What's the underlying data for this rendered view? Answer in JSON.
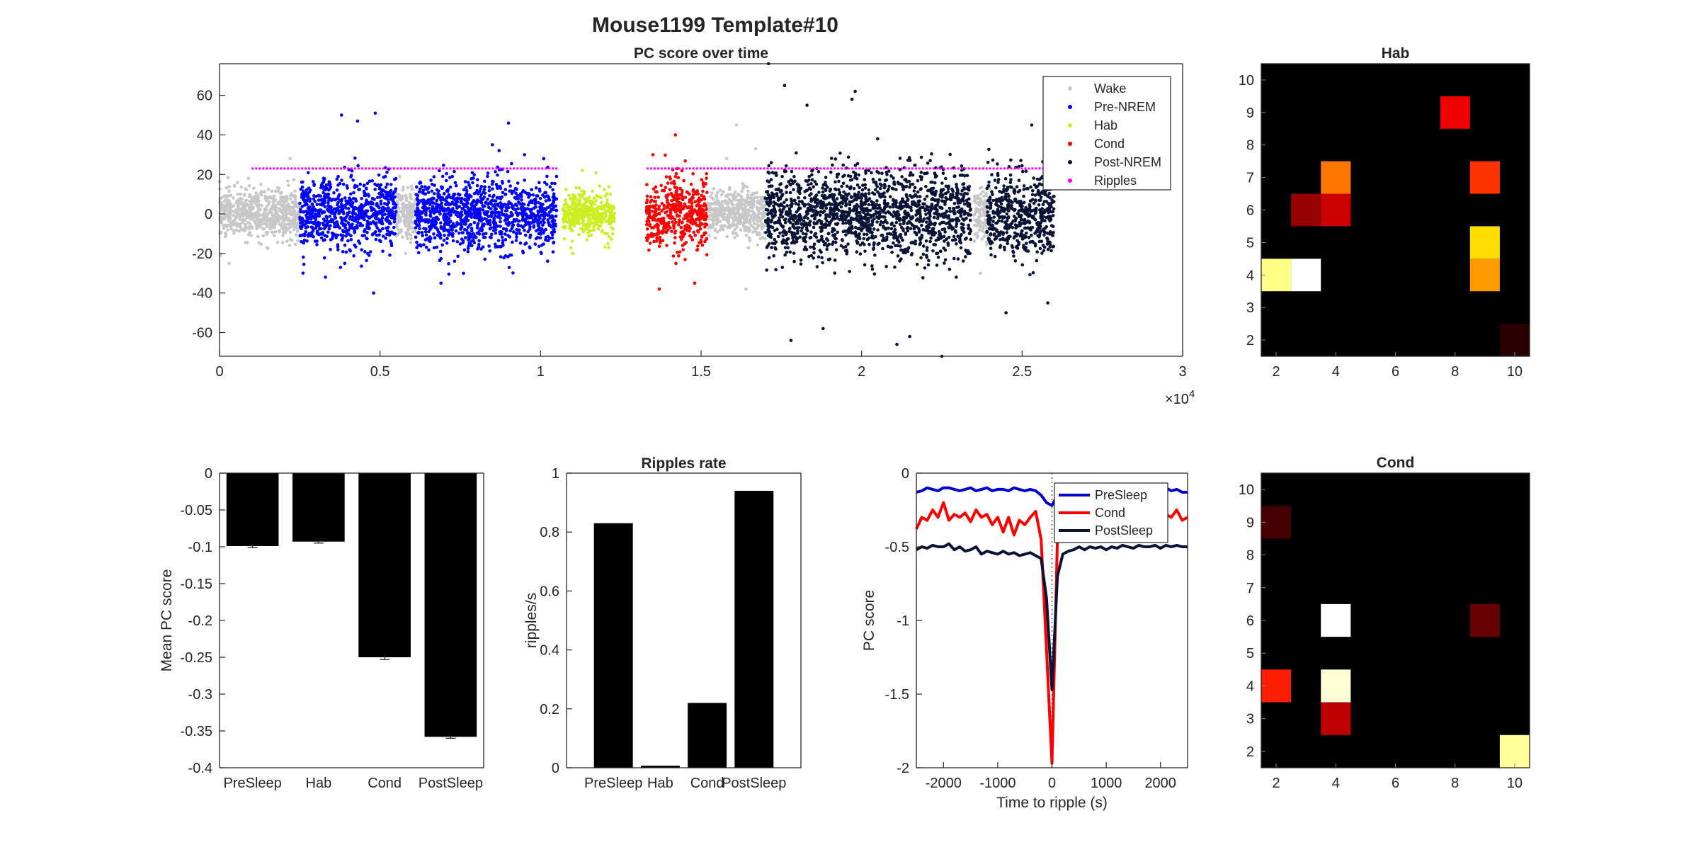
{
  "figure": {
    "suptitle": "Mouse1199 Template#10"
  },
  "chart_data": [
    {
      "id": "timeline",
      "type": "scatter",
      "title": "PC score over time",
      "xlabel": "",
      "ylabel": "",
      "xlim": [
        0,
        30000
      ],
      "ylim": [
        -72,
        76
      ],
      "x_ticks": [
        0,
        5000,
        10000,
        15000,
        20000,
        25000,
        30000
      ],
      "x_tick_labels": [
        "0",
        "0.5",
        "1",
        "1.5",
        "2",
        "2.5",
        "3"
      ],
      "x_exponent_label": "×10",
      "x_exponent_power": "4",
      "y_ticks": [
        -60,
        -40,
        -20,
        0,
        20,
        40,
        60
      ],
      "legend_position": "top-right",
      "series": [
        {
          "name": "Wake",
          "color": "#c8c8c8",
          "segments": [
            [
              0,
              2500
            ],
            [
              5500,
              6100
            ],
            [
              15200,
              17000
            ],
            [
              23500,
              24000
            ]
          ],
          "spread_sd": 6,
          "extremes": [
            [
              300,
              -25
            ],
            [
              900,
              18
            ],
            [
              2200,
              28
            ],
            [
              5800,
              -20
            ],
            [
              15800,
              28
            ],
            [
              16100,
              45
            ],
            [
              16400,
              -38
            ],
            [
              16700,
              33
            ],
            [
              23700,
              -30
            ],
            [
              15600,
              12
            ]
          ]
        },
        {
          "name": "Pre-NREM",
          "color": "#0000ff",
          "segments": [
            [
              2500,
              5500
            ],
            [
              6100,
              10500
            ]
          ],
          "spread_sd": 9,
          "extremes": [
            [
              3800,
              50
            ],
            [
              4300,
              47
            ],
            [
              4850,
              51
            ],
            [
              9000,
              46
            ],
            [
              4800,
              -40
            ],
            [
              6900,
              -35
            ],
            [
              7600,
              -30
            ],
            [
              3300,
              -32
            ],
            [
              8500,
              35
            ],
            [
              9500,
              30
            ],
            [
              10100,
              28
            ],
            [
              3900,
              -25
            ]
          ]
        },
        {
          "name": "Hab",
          "color": "#ccee22",
          "segments": [
            [
              10700,
              12300
            ]
          ],
          "spread_sd": 5.5,
          "extremes": [
            [
              11300,
              22
            ],
            [
              12100,
              -15
            ],
            [
              11000,
              -20
            ]
          ]
        },
        {
          "name": "Cond",
          "color": "#ff0000",
          "segments": [
            [
              13300,
              15200
            ]
          ],
          "spread_sd": 9,
          "extremes": [
            [
              14200,
              40
            ],
            [
              13700,
              -38
            ],
            [
              14800,
              -35
            ],
            [
              13500,
              30
            ]
          ]
        },
        {
          "name": "Post-NREM",
          "color": "#0a1235",
          "segments": [
            [
              17000,
              23400
            ],
            [
              23900,
              26000
            ]
          ],
          "spread_sd": 11,
          "extremes": [
            [
              17100,
              76
            ],
            [
              17600,
              65
            ],
            [
              19800,
              62
            ],
            [
              17800,
              -64
            ],
            [
              21100,
              -66
            ],
            [
              22500,
              -72
            ],
            [
              18800,
              -58
            ],
            [
              19700,
              58
            ],
            [
              21500,
              -62
            ],
            [
              24500,
              -50
            ],
            [
              25300,
              45
            ],
            [
              18300,
              55
            ],
            [
              20500,
              38
            ],
            [
              25800,
              -45
            ]
          ]
        },
        {
          "name": "Ripples",
          "color": "#ff00ff",
          "constant_y": 23,
          "segments": [
            [
              1000,
              10500
            ],
            [
              13300,
              26000
            ]
          ]
        }
      ]
    },
    {
      "id": "mean_pc",
      "type": "bar",
      "title": "",
      "xlabel": "",
      "ylabel": "Mean PC score",
      "categories": [
        "PreSleep",
        "Hab",
        "Cond",
        "PostSleep"
      ],
      "values": [
        -0.099,
        -0.093,
        -0.25,
        -0.358
      ],
      "errors": [
        0.002,
        0.002,
        0.003,
        0.002
      ],
      "ylim": [
        -0.4,
        0
      ],
      "y_ticks": [
        0,
        -0.05,
        -0.1,
        -0.15,
        -0.2,
        -0.25,
        -0.3,
        -0.35,
        -0.4
      ],
      "y_tick_labels": [
        "0",
        "-0.05",
        "-0.1",
        "-0.15",
        "-0.2",
        "-0.25",
        "-0.3",
        "-0.35",
        "-0.4"
      ]
    },
    {
      "id": "ripple_rate",
      "type": "bar",
      "title": "Ripples rate",
      "xlabel": "",
      "ylabel": "ripples/s",
      "categories": [
        "PreSleep",
        "Hab",
        "Cond",
        "PostSleep"
      ],
      "values": [
        0.83,
        0.007,
        0.22,
        0.94
      ],
      "ylim": [
        0,
        1
      ],
      "y_ticks": [
        0,
        0.2,
        0.4,
        0.6,
        0.8,
        1
      ],
      "y_tick_labels": [
        "0",
        "0.2",
        "0.4",
        "0.6",
        "0.8",
        "1"
      ]
    },
    {
      "id": "ripple_triggered",
      "type": "line",
      "title": "",
      "xlabel": "Time to ripple (s)",
      "ylabel": "PC score",
      "xlim": [
        -2500,
        2500
      ],
      "ylim": [
        -2,
        0
      ],
      "x_ticks": [
        -2000,
        -1000,
        0,
        1000,
        2000
      ],
      "x_tick_labels": [
        "-2000",
        "-1000",
        "0",
        "1000",
        "2000"
      ],
      "y_ticks": [
        0,
        -0.5,
        -1,
        -1.5,
        -2
      ],
      "y_tick_labels": [
        "0",
        "-0.5",
        "-1",
        "-1.5",
        "-2"
      ],
      "legend_position": "top-right",
      "x": [
        -2500,
        -2400,
        -2300,
        -2200,
        -2100,
        -2000,
        -1900,
        -1800,
        -1700,
        -1600,
        -1500,
        -1400,
        -1300,
        -1200,
        -1100,
        -1000,
        -900,
        -800,
        -700,
        -600,
        -500,
        -400,
        -300,
        -200,
        -100,
        0,
        100,
        200,
        300,
        400,
        500,
        600,
        700,
        800,
        900,
        1000,
        1100,
        1200,
        1300,
        1400,
        1500,
        1600,
        1700,
        1800,
        1900,
        2000,
        2100,
        2200,
        2300,
        2400,
        2500
      ],
      "series": [
        {
          "name": "PreSleep",
          "color": "#0000cc",
          "values": [
            -0.13,
            -0.12,
            -0.1,
            -0.11,
            -0.12,
            -0.1,
            -0.1,
            -0.11,
            -0.12,
            -0.11,
            -0.1,
            -0.12,
            -0.11,
            -0.1,
            -0.12,
            -0.11,
            -0.11,
            -0.12,
            -0.1,
            -0.11,
            -0.12,
            -0.11,
            -0.12,
            -0.15,
            -0.2,
            -0.22,
            -0.15,
            -0.12,
            -0.11,
            -0.12,
            -0.11,
            -0.1,
            -0.12,
            -0.11,
            -0.12,
            -0.11,
            -0.1,
            -0.11,
            -0.12,
            -0.1,
            -0.11,
            -0.12,
            -0.11,
            -0.1,
            -0.12,
            -0.11,
            -0.1,
            -0.12,
            -0.11,
            -0.13,
            -0.13
          ]
        },
        {
          "name": "Cond",
          "color": "#ff0000",
          "values": [
            -0.38,
            -0.3,
            -0.32,
            -0.25,
            -0.3,
            -0.2,
            -0.32,
            -0.28,
            -0.3,
            -0.27,
            -0.33,
            -0.25,
            -0.3,
            -0.28,
            -0.35,
            -0.3,
            -0.4,
            -0.3,
            -0.42,
            -0.32,
            -0.35,
            -0.3,
            -0.26,
            -0.45,
            -1.2,
            -1.97,
            -0.45,
            -0.3,
            -0.28,
            -0.3,
            -0.27,
            -0.25,
            -0.3,
            -0.27,
            -0.31,
            -0.25,
            -0.3,
            -0.28,
            -0.3,
            -0.27,
            -0.32,
            -0.25,
            -0.3,
            -0.27,
            -0.32,
            -0.3,
            -0.28,
            -0.3,
            -0.25,
            -0.32,
            -0.3
          ]
        },
        {
          "name": "PostSleep",
          "color": "#0a1235",
          "values": [
            -0.52,
            -0.5,
            -0.51,
            -0.49,
            -0.5,
            -0.5,
            -0.48,
            -0.52,
            -0.5,
            -0.53,
            -0.52,
            -0.5,
            -0.55,
            -0.53,
            -0.54,
            -0.55,
            -0.53,
            -0.55,
            -0.54,
            -0.56,
            -0.55,
            -0.54,
            -0.56,
            -0.58,
            -0.85,
            -1.47,
            -0.7,
            -0.55,
            -0.53,
            -0.52,
            -0.5,
            -0.52,
            -0.5,
            -0.51,
            -0.5,
            -0.52,
            -0.5,
            -0.51,
            -0.49,
            -0.5,
            -0.51,
            -0.49,
            -0.5,
            -0.5,
            -0.49,
            -0.51,
            -0.49,
            -0.5,
            -0.49,
            -0.5,
            -0.5
          ]
        }
      ],
      "reference_line": {
        "x": 0,
        "style": "dotted"
      }
    },
    {
      "id": "hab_matrix",
      "type": "heatmap",
      "title": "Hab",
      "x_range": [
        1.5,
        10.5
      ],
      "y_range": [
        1.5,
        10.5
      ],
      "x_ticks": [
        2,
        4,
        6,
        8,
        10
      ],
      "y_ticks": [
        2,
        3,
        4,
        5,
        6,
        7,
        8,
        9,
        10
      ],
      "cells": [
        {
          "x": 2,
          "y": 4,
          "v": 0.88
        },
        {
          "x": 3,
          "y": 4,
          "v": 1.0
        },
        {
          "x": 4,
          "y": 7,
          "v": 0.55
        },
        {
          "x": 4,
          "y": 6,
          "v": 0.3
        },
        {
          "x": 3,
          "y": 6,
          "v": 0.22
        },
        {
          "x": 8,
          "y": 9,
          "v": 0.35
        },
        {
          "x": 9,
          "y": 7,
          "v": 0.45
        },
        {
          "x": 9,
          "y": 5,
          "v": 0.7
        },
        {
          "x": 9,
          "y": 4,
          "v": 0.6
        },
        {
          "x": 10,
          "y": 2,
          "v": 0.06
        }
      ]
    },
    {
      "id": "cond_matrix",
      "type": "heatmap",
      "title": "Cond",
      "x_range": [
        1.5,
        10.5
      ],
      "y_range": [
        1.5,
        10.5
      ],
      "x_ticks": [
        2,
        4,
        6,
        8,
        10
      ],
      "y_ticks": [
        2,
        3,
        4,
        5,
        6,
        7,
        8,
        9,
        10
      ],
      "cells": [
        {
          "x": 2,
          "y": 9,
          "v": 0.1
        },
        {
          "x": 2,
          "y": 4,
          "v": 0.42
        },
        {
          "x": 4,
          "y": 6,
          "v": 1.0
        },
        {
          "x": 4,
          "y": 4,
          "v": 0.96
        },
        {
          "x": 4,
          "y": 3,
          "v": 0.28
        },
        {
          "x": 9,
          "y": 6,
          "v": 0.15
        },
        {
          "x": 10,
          "y": 2,
          "v": 0.9
        }
      ]
    }
  ]
}
